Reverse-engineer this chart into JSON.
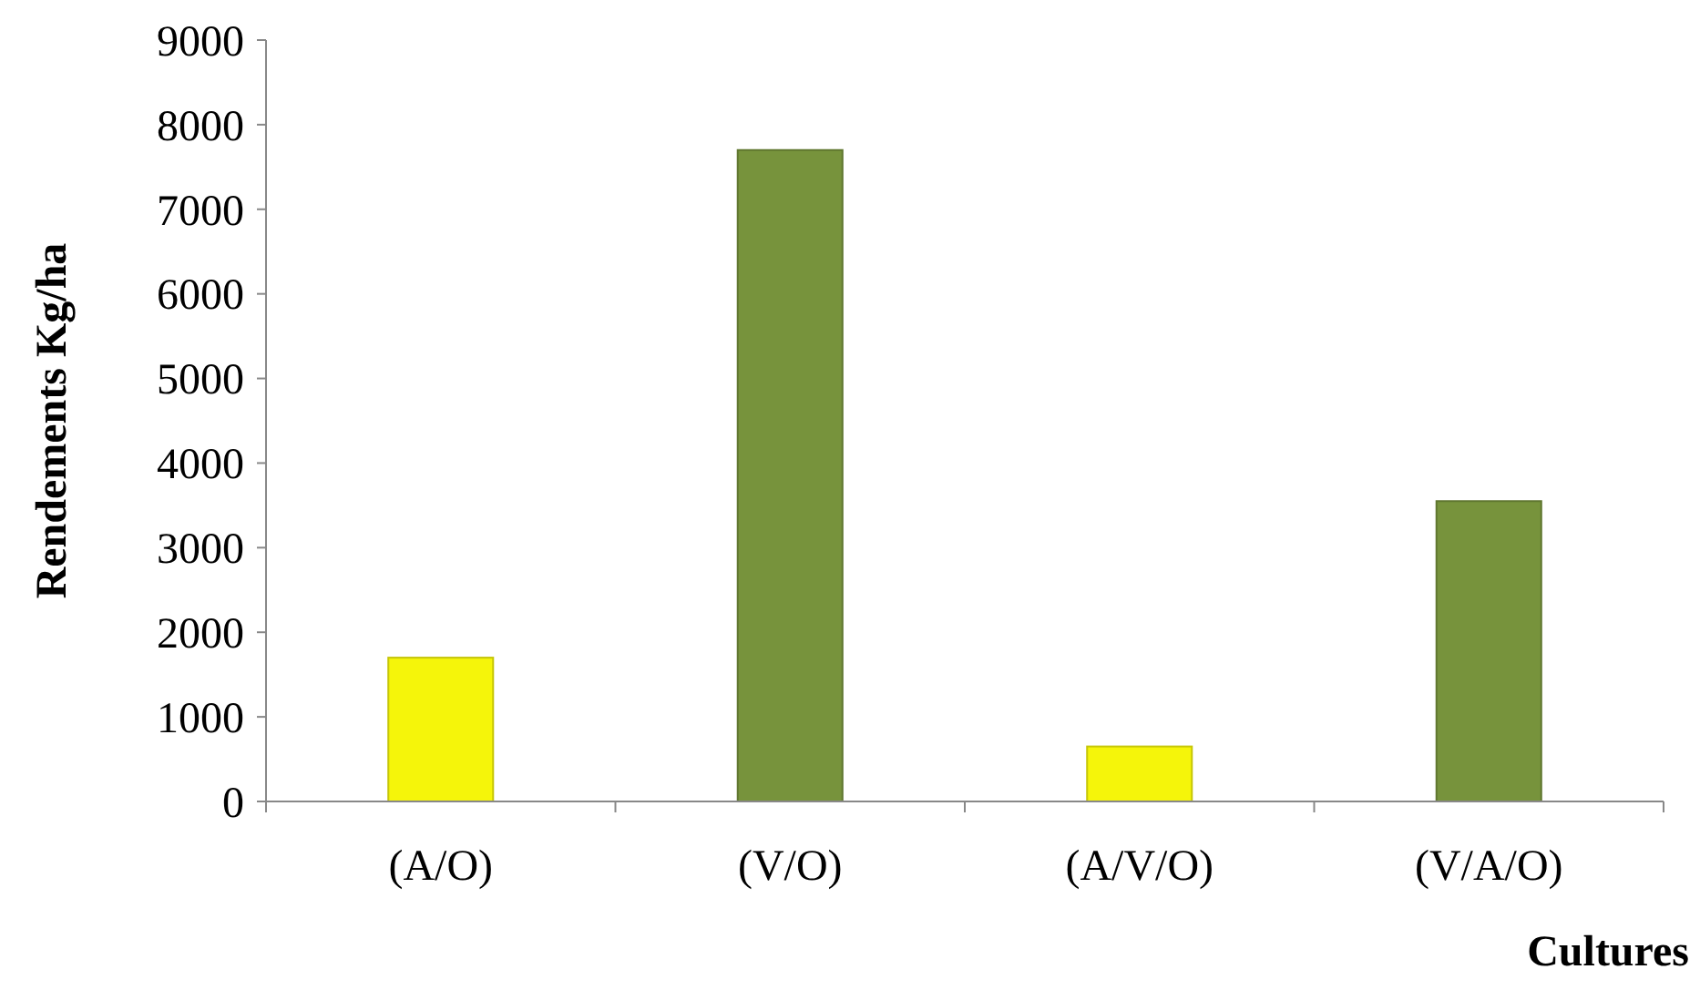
{
  "chart_data": {
    "type": "bar",
    "xlabel": "Cultures",
    "ylabel": "Rendements Kg/ha",
    "categories": [
      "(A/O)",
      "(V/O)",
      "(A/V/O)",
      "(V/A/O)"
    ],
    "values": [
      1700,
      7700,
      650,
      3550
    ],
    "colors": [
      "#f5f50a",
      "#77933c",
      "#f5f50a",
      "#77933c"
    ],
    "ylim": [
      0,
      9000
    ],
    "yticks": [
      0,
      1000,
      2000,
      3000,
      4000,
      5000,
      6000,
      7000,
      8000,
      9000
    ],
    "grid": false
  }
}
